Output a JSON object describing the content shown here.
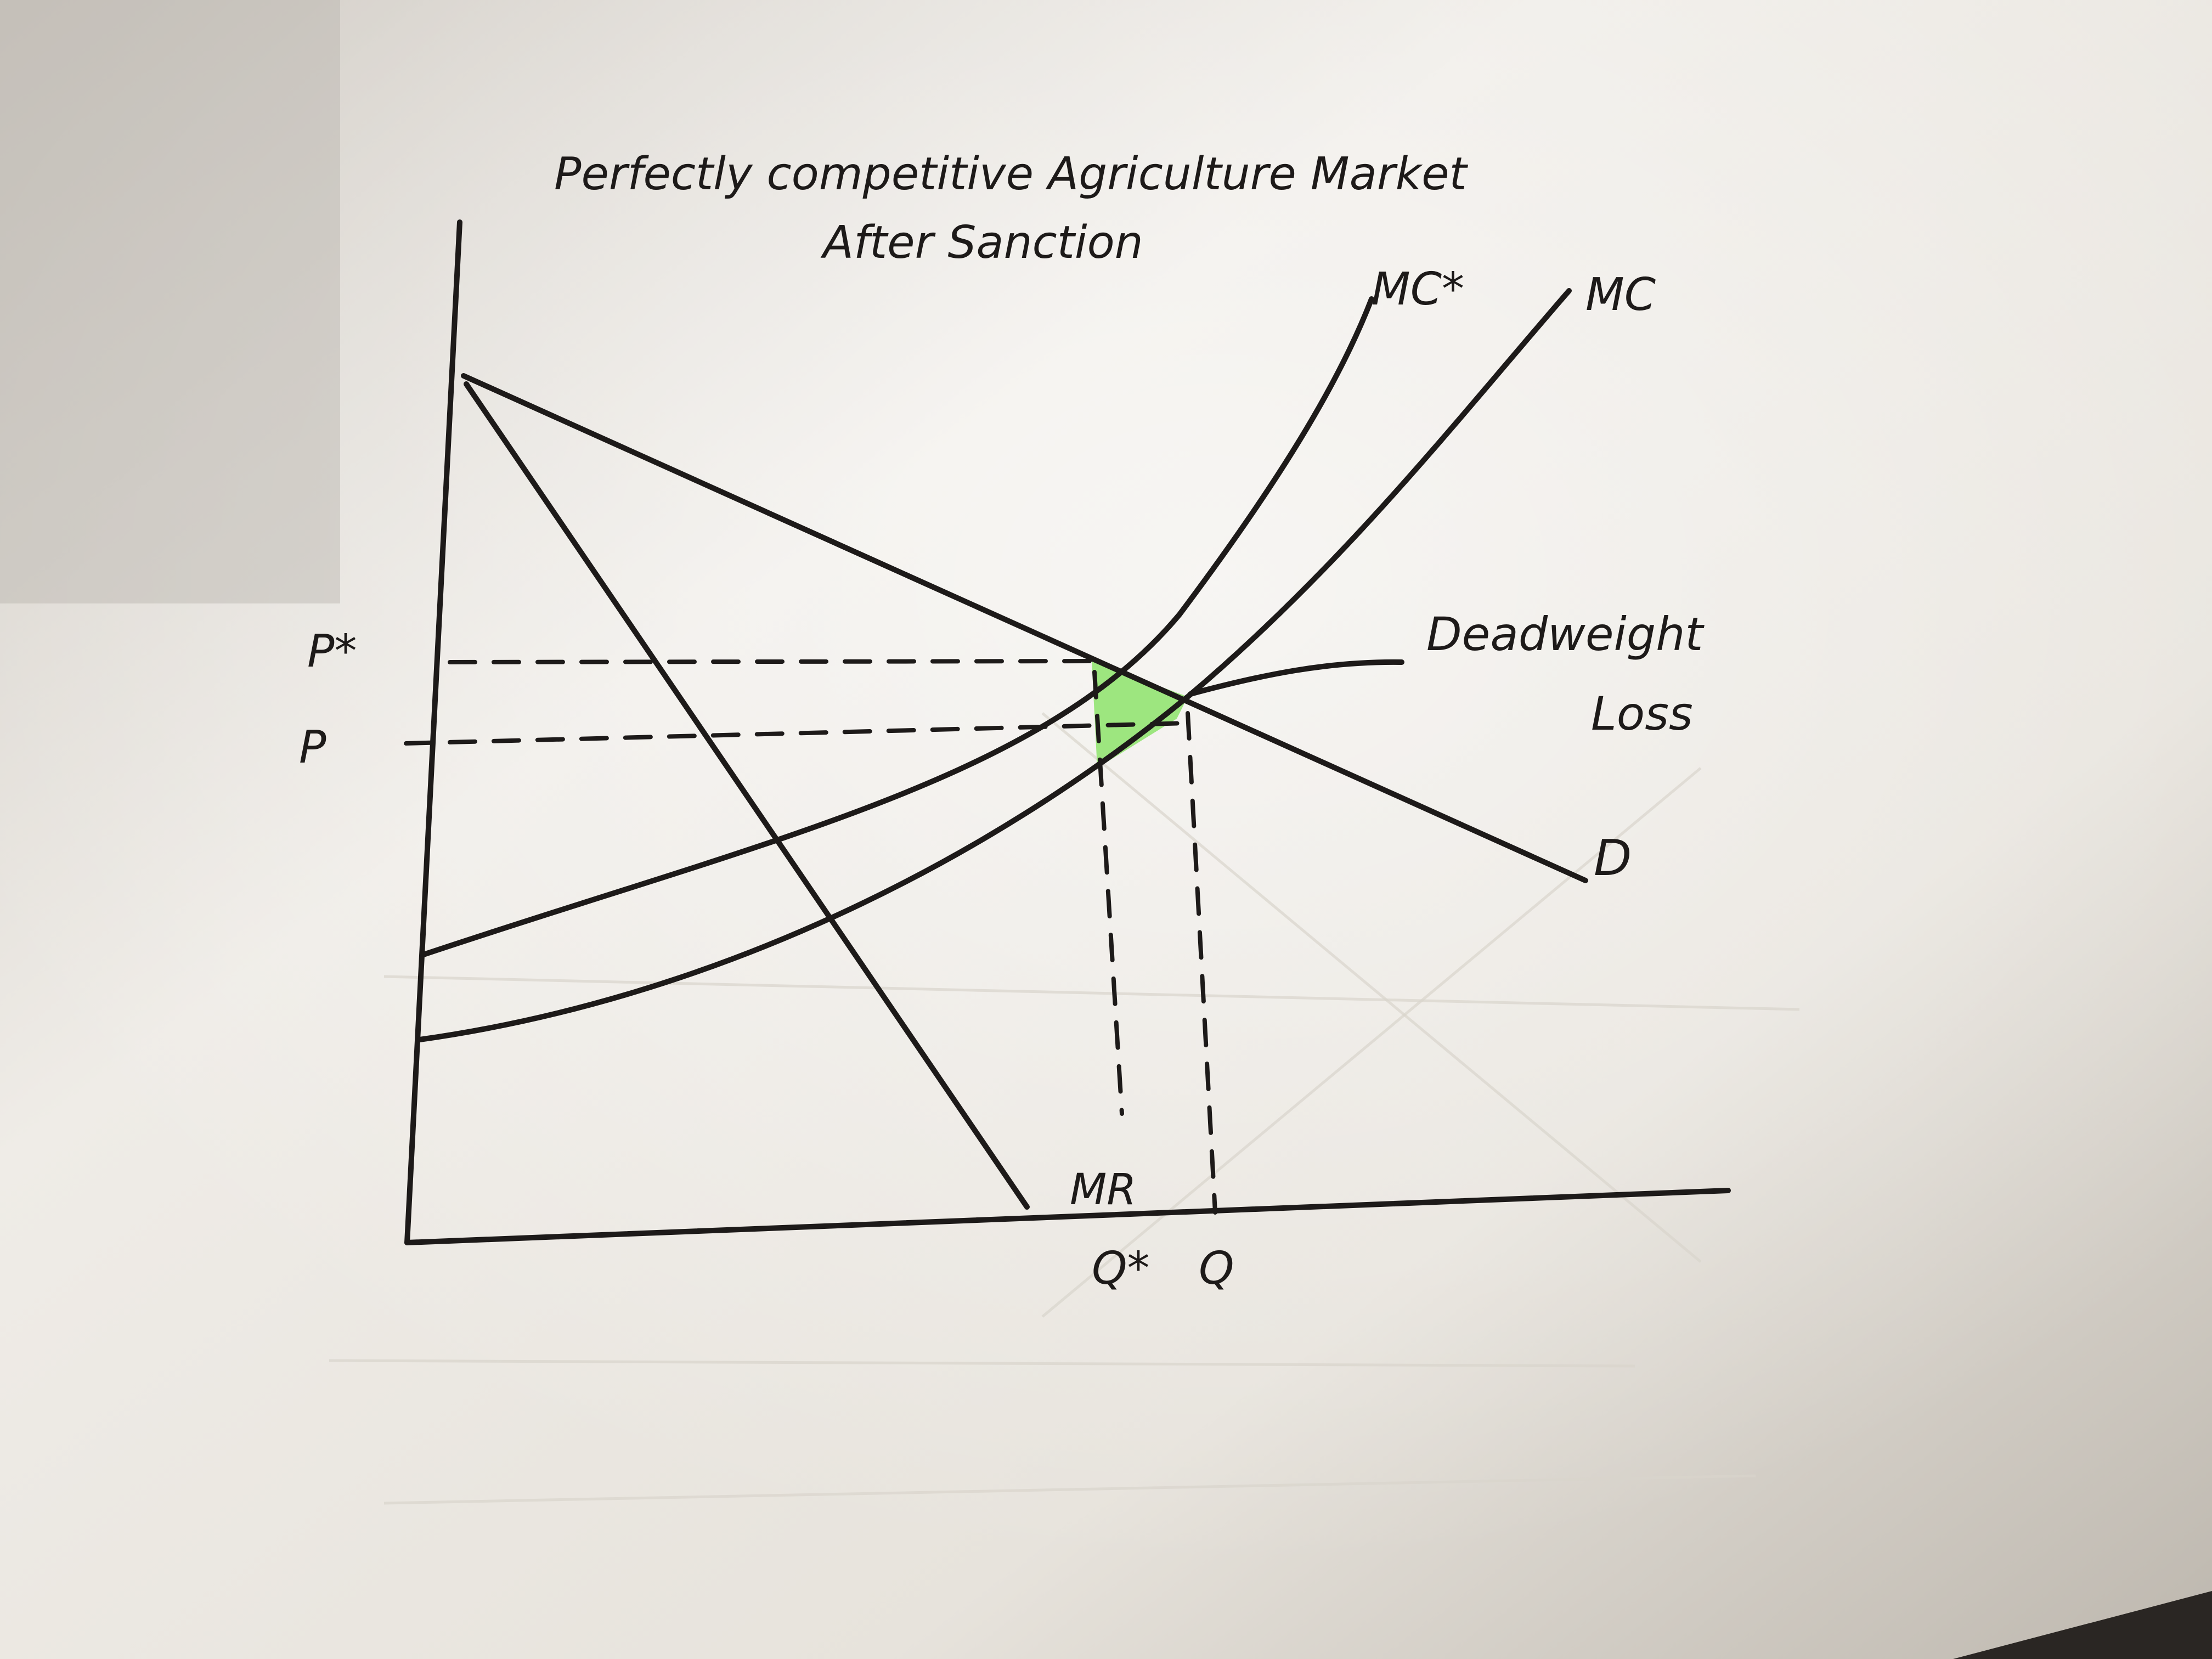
{
  "title": {
    "line1": "Perfectly competitive Agriculture Market",
    "line2": "After Sanction"
  },
  "axis_labels": {
    "p_star": "P*",
    "p": "P",
    "q_star": "Q*",
    "q": "Q"
  },
  "curve_labels": {
    "mc_star": "MC*",
    "mc": "MC",
    "demand": "D",
    "mr": "MR"
  },
  "annotation": {
    "line1": "Deadweight",
    "line2": "Loss"
  },
  "colors": {
    "paper": "#eeebe5",
    "ink": "#1d1a19",
    "highlight": "#8de36b"
  }
}
